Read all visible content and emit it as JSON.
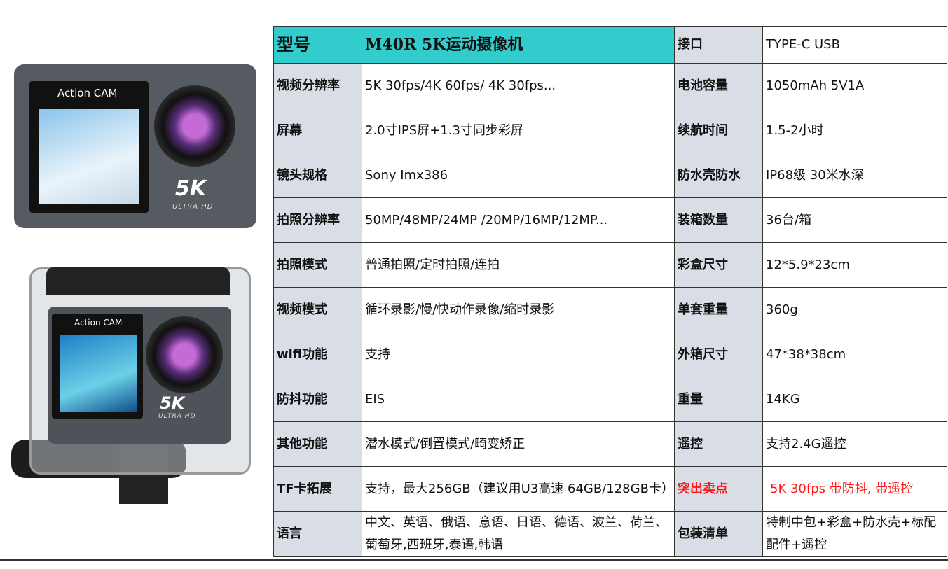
{
  "images": [
    {
      "brand": "Action CAM",
      "logo": "5K",
      "sub": "ULTRA HD"
    },
    {
      "brand": "Action CAM",
      "logo": "5K",
      "sub": "ULTRA HD"
    }
  ],
  "table": {
    "header": {
      "l1": "型号",
      "v1": "M40R  5K运动摄像机",
      "l2": "接口",
      "v2": "TYPE-C USB"
    },
    "rows": [
      {
        "l1": "视频分辨率",
        "v1": "5K 30fps/4K 60fps/ 4K 30fps...",
        "l2": "电池容量",
        "v2": "1050mAh   5V1A"
      },
      {
        "l1": "屏幕",
        "v1": "2.0寸IPS屏+1.3寸同步彩屏",
        "l2": "续航时间",
        "v2": "1.5-2小时"
      },
      {
        "l1": "镜头规格",
        "v1": "Sony Imx386",
        "l2": "防水壳防水",
        "v2": "IP68级   30米水深"
      },
      {
        "l1": "拍照分辨率",
        "v1": "50MP/48MP/24MP /20MP/16MP/12MP...",
        "l2": "装箱数量",
        "v2": "36台/箱"
      },
      {
        "l1": "拍照模式",
        "v1": "普通拍照/定时拍照/连拍",
        "l2": "彩盒尺寸",
        "v2": "12*5.9*23cm"
      },
      {
        "l1": "视频模式",
        "v1": "循环录影/慢/快动作录像/缩时录影",
        "l2": "单套重量",
        "v2": "360g"
      },
      {
        "l1": "wifi功能",
        "v1": "支持",
        "l2": "外箱尺寸",
        "v2": "47*38*38cm"
      },
      {
        "l1": "防抖功能",
        "v1": "EIS",
        "l2": "重量",
        "v2": "14KG"
      },
      {
        "l1": "其他功能",
        "v1": "潜水模式/倒置模式/畸变矫正",
        "l2": "遥控",
        "v2": "支持2.4G遥控"
      },
      {
        "l1": "TF卡拓展",
        "v1": "支持，最大256GB（建议用U3高速 64GB/128GB卡）",
        "l2": "突出卖点",
        "v2": "5K 30fps 带防抖, 带遥控"
      },
      {
        "l1": "语言",
        "v1": "中文、英语、俄语、意语、日语、德语、波兰、荷兰、葡萄牙,西班牙,泰语,韩语",
        "l2": "包装清单",
        "v2": "特制中包+彩盒+防水壳+标配配件+遥控"
      }
    ]
  },
  "colors": {
    "header": "#33cccc",
    "label_bg": "#d9dde5",
    "highlight": "#ff1a1a"
  }
}
